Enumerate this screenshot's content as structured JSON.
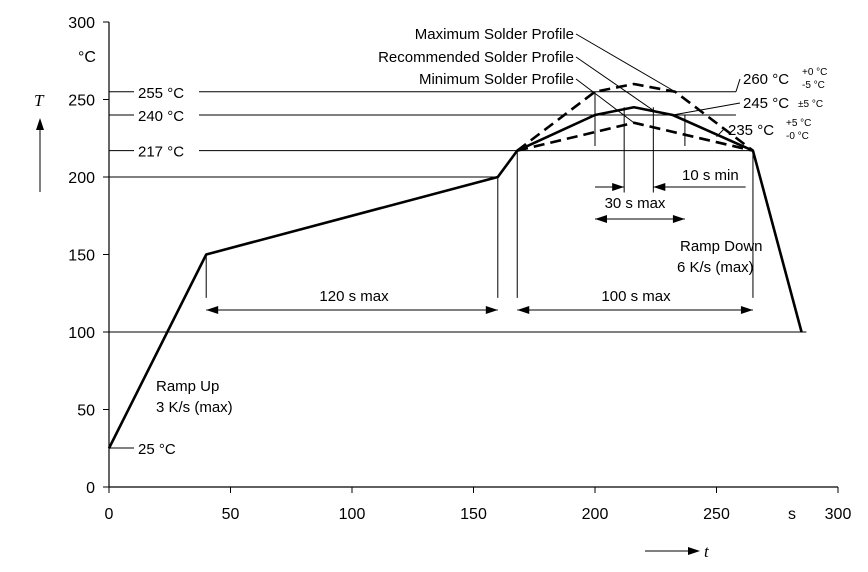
{
  "chart_data": {
    "type": "line",
    "title": "",
    "xlabel": "t",
    "ylabel": "T",
    "x_unit": "s",
    "y_unit": "°C",
    "xlim": [
      0,
      300
    ],
    "ylim": [
      0,
      300
    ],
    "x_ticks": [
      "0",
      "50",
      "100",
      "150",
      "200",
      "250",
      "300"
    ],
    "y_ticks": [
      "0",
      "50",
      "100",
      "150",
      "200",
      "250",
      "300"
    ],
    "series": [
      {
        "name": "Recommended Solder Profile",
        "style": "solid",
        "points": [
          [
            0,
            25
          ],
          [
            40,
            150
          ],
          [
            160,
            200
          ],
          [
            168,
            217
          ],
          [
            200,
            240
          ],
          [
            216,
            245
          ],
          [
            232,
            240
          ],
          [
            265,
            217
          ],
          [
            285,
            100
          ]
        ]
      },
      {
        "name": "Maximum Solder Profile",
        "style": "dashed",
        "points": [
          [
            168,
            217
          ],
          [
            200,
            255
          ],
          [
            216,
            260
          ],
          [
            233,
            255
          ],
          [
            265,
            217
          ]
        ]
      },
      {
        "name": "Minimum Solder Profile",
        "style": "dashed",
        "points": [
          [
            168,
            217
          ],
          [
            216,
            235
          ],
          [
            265,
            217
          ]
        ]
      }
    ],
    "temperature_labels": [
      {
        "text": "255 °C",
        "value": 255
      },
      {
        "text": "240 °C",
        "value": 240
      },
      {
        "text": "217 °C",
        "value": 217
      }
    ],
    "annotations": {
      "start_temp": "25 °C",
      "ramp_up": [
        "Ramp Up",
        "3 K/s (max)"
      ],
      "ramp_down": [
        "Ramp Down",
        "6 K/s (max)"
      ],
      "preheat_time": "120 s max",
      "above_liquidus_time": "100 s max",
      "peak_window_time": "30 s max",
      "peak_hold_time": "10 s min",
      "peak_260": {
        "main": "260 °C",
        "tol_top": "+0 °C",
        "tol_bottom": "-5 °C"
      },
      "peak_245": {
        "main": "245 °C",
        "tol": "±5 °C"
      },
      "peak_235": {
        "main": "235 °C",
        "tol_top": "+5 °C",
        "tol_bottom": "-0 °C"
      }
    },
    "grid": false,
    "legend": "none"
  }
}
